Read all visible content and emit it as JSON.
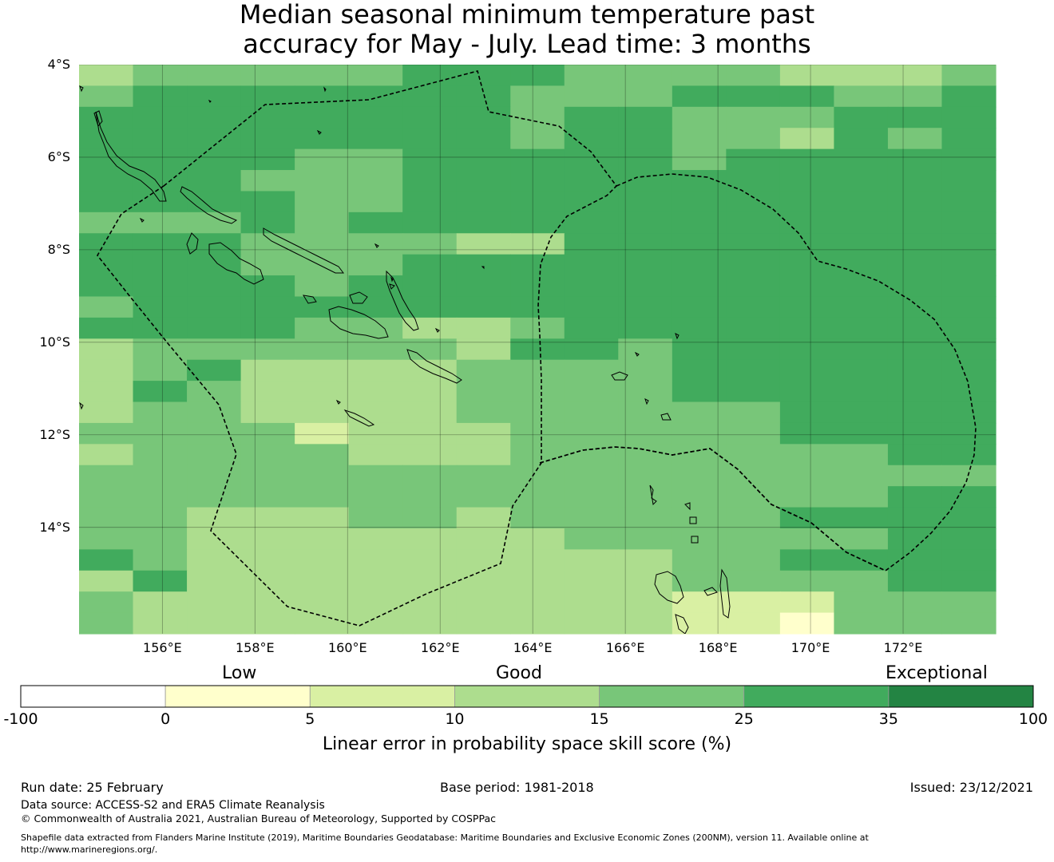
{
  "title": {
    "line1": "Median seasonal minimum temperature past",
    "line2": "accuracy for May - July. Lead time: 3 months"
  },
  "map": {
    "latitude_labels": [
      "4°S",
      "6°S",
      "8°S",
      "10°S",
      "12°S",
      "14°S"
    ],
    "longitude_labels": [
      "156°E",
      "158°E",
      "160°E",
      "162°E",
      "164°E",
      "166°E",
      "168°E",
      "170°E",
      "172°E"
    ],
    "latitude_values": [
      -4,
      -6,
      -8,
      -10,
      -12,
      -14
    ],
    "longitude_values": [
      156,
      158,
      160,
      162,
      164,
      166,
      168,
      170,
      172
    ],
    "extent": {
      "lon_min": 154.2,
      "lon_max": 174.0,
      "lat_min": -16.3,
      "lat_max": -4.0
    },
    "gridlines": true,
    "boundary_style": "dashed",
    "cell_class_rows": [
      "34444455544443334",
      "45555555444555445",
      "55555555455444555",
      "55555555455443545",
      "55554455555455555",
      "55544455555555555",
      "55554455555555555",
      "44454555555555555",
      "55544443355555555",
      "55544455555555555",
      "55554555555555555",
      "45555555555555555",
      "55554433455555555",
      "34444443554555555",
      "34533334444555555",
      "35433334444555555",
      "34433334444445555",
      "44442333444445555",
      "34444333444444455",
      "44444444444444444",
      "44444444444444455",
      "44333443444445555",
      "44333333344444455",
      "54333333333445555",
      "35333333333444455",
      "43333333333222444",
      "43333333333221444"
    ]
  },
  "legend": {
    "category_labels": [
      "Low",
      "Good",
      "Exceptional"
    ],
    "tick_labels": [
      "-100",
      "0",
      "5",
      "10",
      "15",
      "25",
      "35",
      "100"
    ],
    "bins": [
      {
        "from": -100,
        "to": 0,
        "color": "#ffffff"
      },
      {
        "from": 0,
        "to": 5,
        "color": "#ffffcc"
      },
      {
        "from": 5,
        "to": 10,
        "color": "#d9f0a3"
      },
      {
        "from": 10,
        "to": 15,
        "color": "#addd8e"
      },
      {
        "from": 15,
        "to": 25,
        "color": "#78c679"
      },
      {
        "from": 25,
        "to": 35,
        "color": "#41ab5d"
      },
      {
        "from": 35,
        "to": 100,
        "color": "#238443"
      }
    ],
    "label": "Linear error in probability space skill score (%)"
  },
  "footer": {
    "run_date": "Run date: 25 February",
    "base_period": "Base period: 1981-2018",
    "issued": "Issued: 23/12/2021",
    "data_source": "Data source: ACCESS-S2 and ERA5 Climate Reanalysis",
    "copyright": "© Commonwealth of Australia 2021, Australian Bureau of Meteorology, Supported by COSPPac",
    "shapefile_line1": "Shapefile data extracted from Flanders Marine Institute (2019), Maritime Boundaries Geodatabase: Maritime Boundaries and Exclusive Economic Zones (200NM), version 11. Available online at",
    "shapefile_line2": "http://www.marineregions.org/."
  }
}
